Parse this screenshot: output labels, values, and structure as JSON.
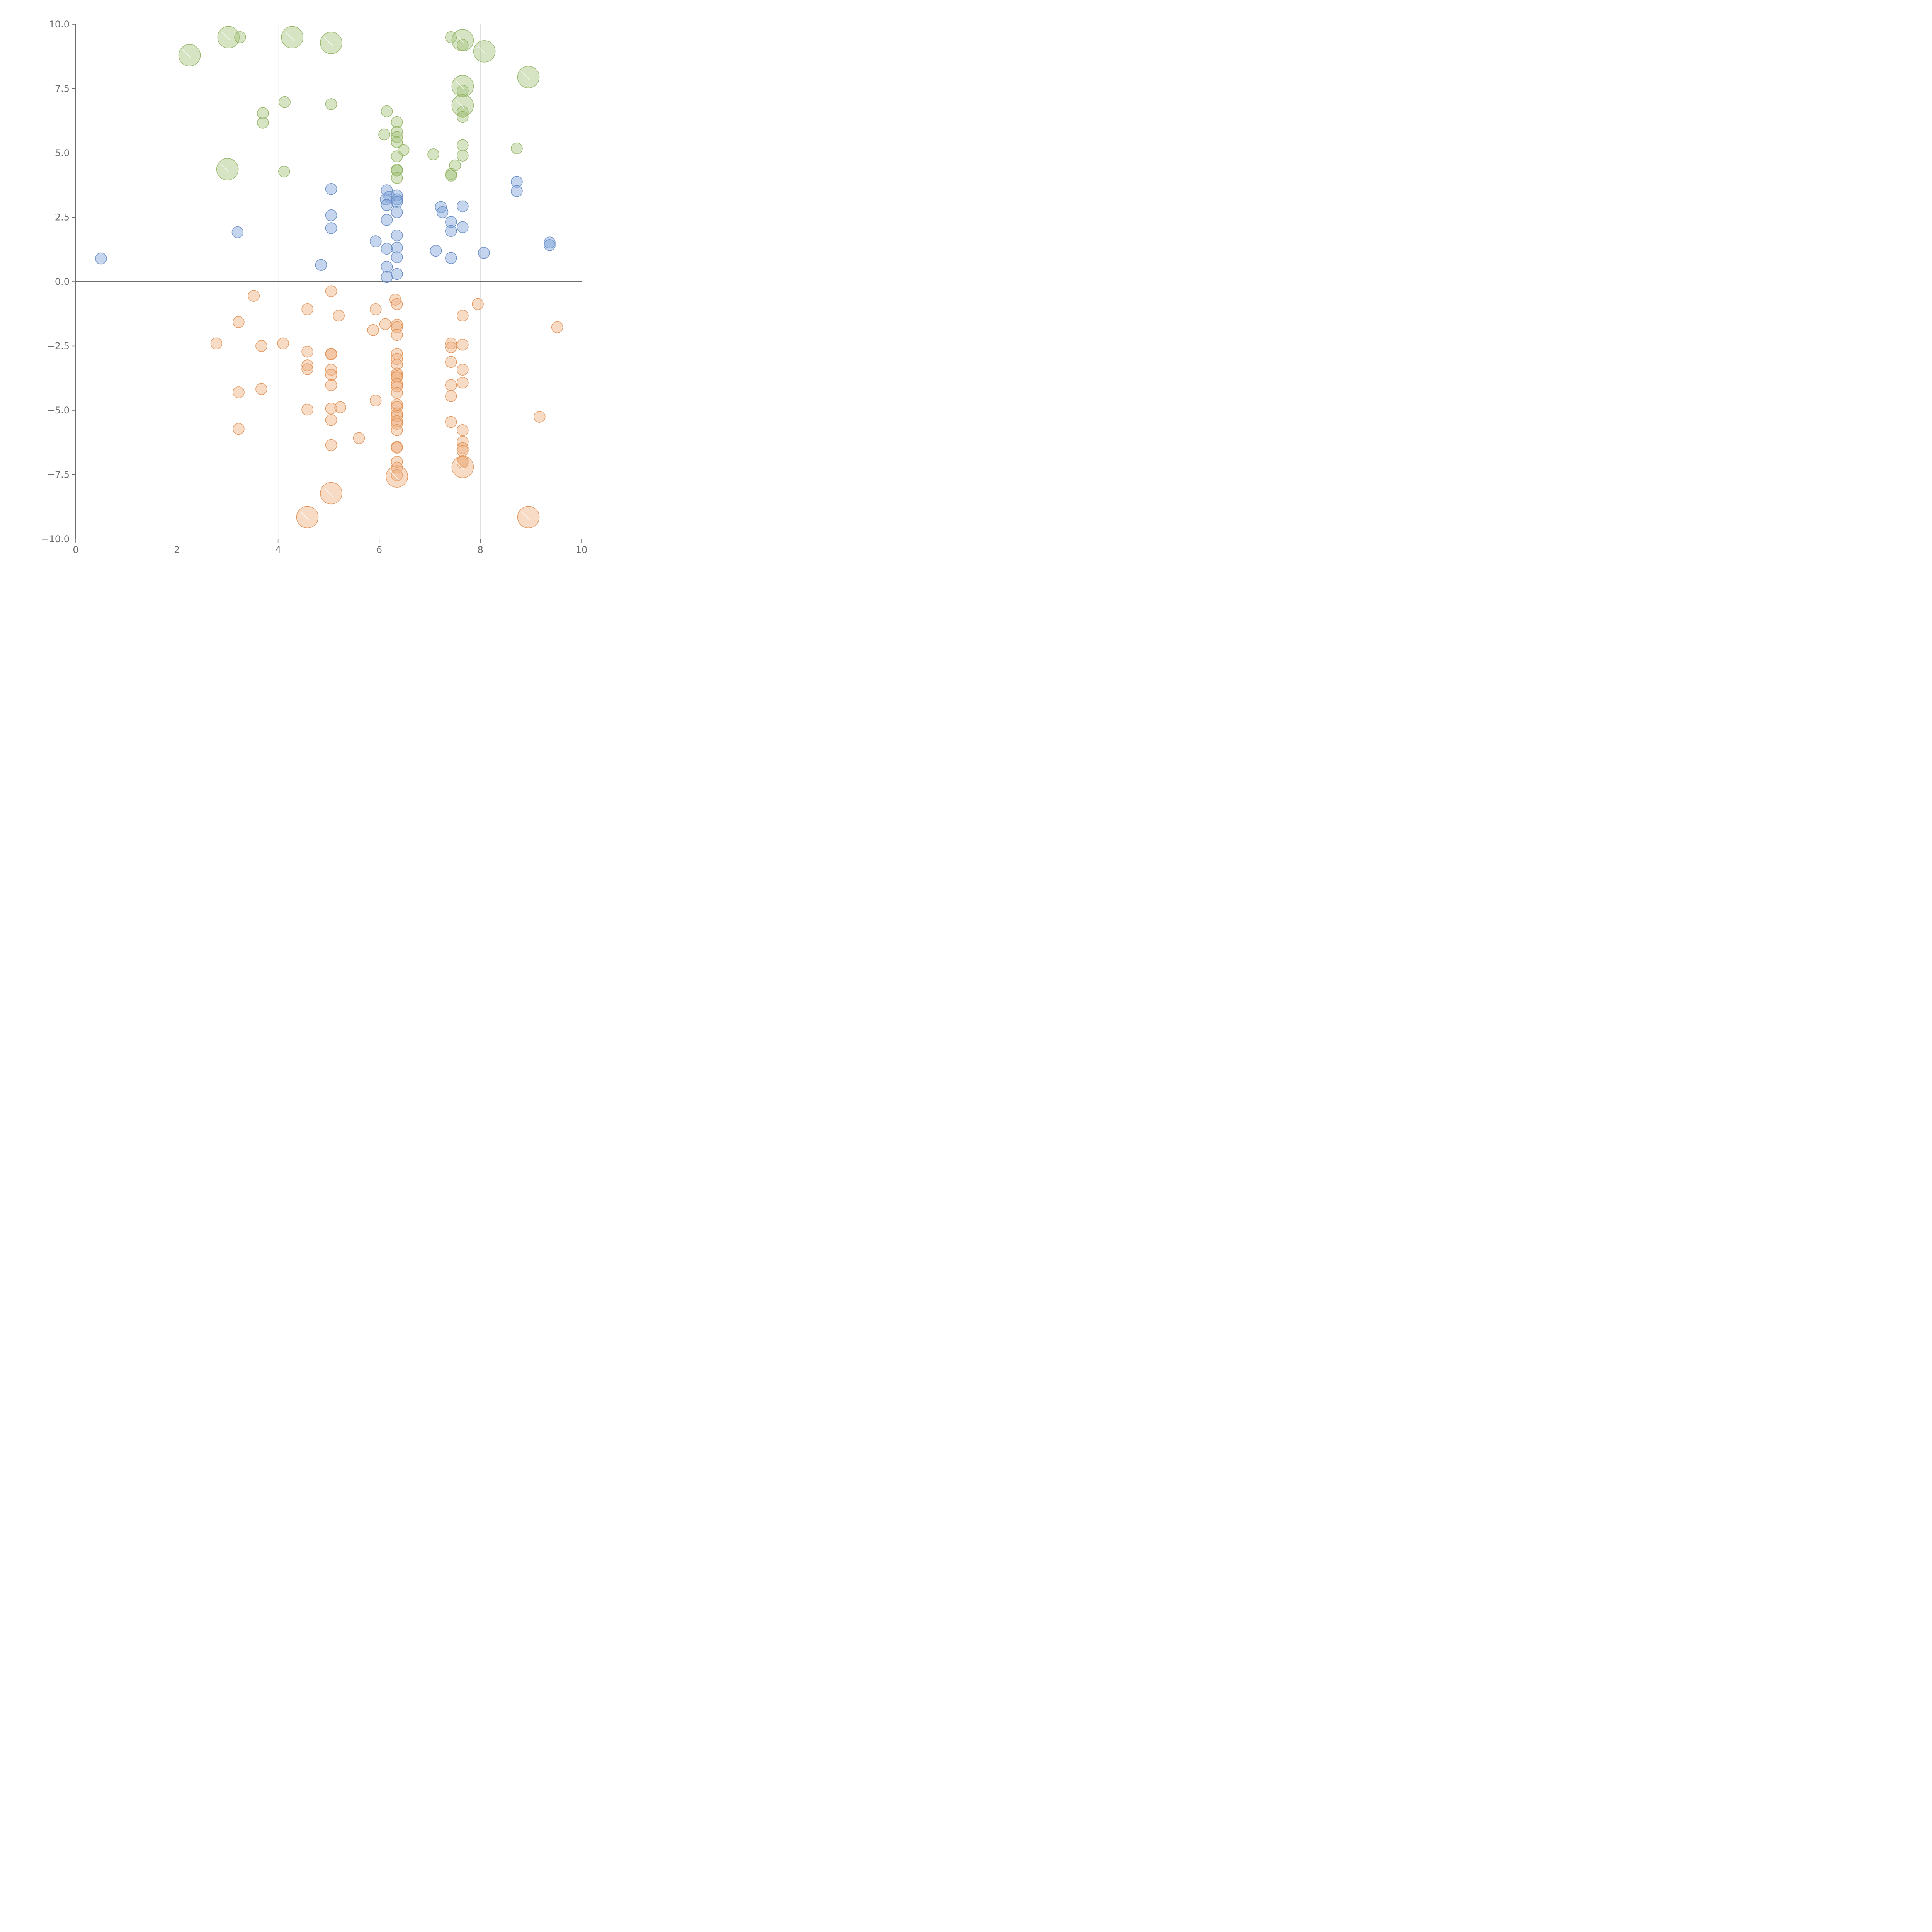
{
  "chart_data": {
    "type": "scatter",
    "title": "",
    "xlabel": "",
    "ylabel": "",
    "xlim": [
      0,
      10
    ],
    "ylim": [
      -10,
      10
    ],
    "x_ticks": [
      0,
      2,
      4,
      6,
      8,
      10
    ],
    "y_ticks": [
      -10,
      -7.5,
      -5,
      -2.5,
      0,
      2.5,
      5,
      7.5,
      10
    ],
    "x_tick_labels": [
      "0",
      "2",
      "4",
      "6",
      "8",
      "10"
    ],
    "y_tick_labels": [
      "−10.0",
      "−7.5",
      "−5.0",
      "−2.5",
      "0.0",
      "2.5",
      "5.0",
      "7.5",
      "10.0"
    ],
    "grid": {
      "vertical": true,
      "horizontal": false
    },
    "zero_line": true,
    "series": [
      {
        "color": "#a5c37c",
        "stroke": "#8fb05f",
        "points": [
          [
            2.25,
            8.8,
            2
          ],
          [
            3.02,
            9.5,
            2
          ],
          [
            3.25,
            9.5,
            1
          ],
          [
            4.28,
            9.5,
            2
          ],
          [
            5.05,
            9.28,
            2
          ],
          [
            7.42,
            9.5,
            1
          ],
          [
            7.65,
            9.38,
            2
          ],
          [
            7.65,
            9.2,
            1
          ],
          [
            8.08,
            8.95,
            2
          ],
          [
            8.95,
            7.95,
            2
          ],
          [
            7.65,
            7.6,
            2
          ],
          [
            7.65,
            7.42,
            1
          ],
          [
            7.65,
            6.85,
            2
          ],
          [
            7.65,
            6.6,
            1
          ],
          [
            7.65,
            6.4,
            1
          ],
          [
            3.7,
            6.55,
            1
          ],
          [
            3.7,
            6.18,
            1
          ],
          [
            4.13,
            6.98,
            1
          ],
          [
            5.05,
            6.9,
            1
          ],
          [
            6.15,
            6.62,
            1
          ],
          [
            6.35,
            6.2,
            1
          ],
          [
            6.35,
            5.82,
            1
          ],
          [
            6.35,
            5.62,
            1
          ],
          [
            6.35,
            5.42,
            1
          ],
          [
            6.1,
            5.72,
            1
          ],
          [
            6.48,
            5.12,
            1
          ],
          [
            6.35,
            4.87,
            1
          ],
          [
            6.35,
            4.35,
            1
          ],
          [
            6.35,
            4.32,
            1
          ],
          [
            6.35,
            4.03,
            1
          ],
          [
            7.07,
            4.95,
            1
          ],
          [
            7.65,
            5.3,
            1
          ],
          [
            7.65,
            4.9,
            1
          ],
          [
            7.5,
            4.52,
            1
          ],
          [
            7.42,
            4.18,
            1
          ],
          [
            7.42,
            4.12,
            1
          ],
          [
            8.72,
            5.18,
            1
          ],
          [
            3.0,
            4.37,
            2
          ],
          [
            4.12,
            4.28,
            1
          ]
        ]
      },
      {
        "color": "#7ea2d6",
        "stroke": "#5f86c0",
        "points": [
          [
            0.5,
            0.9,
            1
          ],
          [
            3.2,
            1.92,
            1
          ],
          [
            4.85,
            0.65,
            1
          ],
          [
            5.05,
            3.6,
            1
          ],
          [
            5.05,
            2.58,
            1
          ],
          [
            5.05,
            2.08,
            1
          ],
          [
            5.93,
            1.57,
            1
          ],
          [
            6.15,
            3.55,
            1
          ],
          [
            6.13,
            3.2,
            1
          ],
          [
            6.2,
            3.3,
            1
          ],
          [
            6.15,
            2.98,
            1
          ],
          [
            6.35,
            3.35,
            1
          ],
          [
            6.35,
            3.2,
            1
          ],
          [
            6.35,
            3.1,
            1
          ],
          [
            6.35,
            2.7,
            1
          ],
          [
            6.15,
            2.4,
            1
          ],
          [
            6.35,
            1.8,
            1
          ],
          [
            6.15,
            1.28,
            1
          ],
          [
            6.35,
            1.32,
            1
          ],
          [
            6.35,
            0.95,
            1
          ],
          [
            6.15,
            0.58,
            1
          ],
          [
            6.15,
            0.18,
            1
          ],
          [
            6.35,
            0.3,
            1
          ],
          [
            7.12,
            1.2,
            1
          ],
          [
            7.22,
            2.9,
            1
          ],
          [
            7.25,
            2.7,
            1
          ],
          [
            7.42,
            2.32,
            1
          ],
          [
            7.42,
            1.97,
            1
          ],
          [
            7.42,
            0.92,
            1
          ],
          [
            7.65,
            2.93,
            1
          ],
          [
            7.65,
            2.12,
            1
          ],
          [
            8.07,
            1.12,
            1
          ],
          [
            8.72,
            3.88,
            1
          ],
          [
            8.72,
            3.52,
            1
          ],
          [
            9.37,
            1.52,
            1
          ],
          [
            9.37,
            1.42,
            1
          ]
        ]
      },
      {
        "color": "#eeb07e",
        "stroke": "#df8e52",
        "points": [
          [
            2.78,
            -2.4,
            1
          ],
          [
            3.22,
            -1.57,
            1
          ],
          [
            3.52,
            -0.55,
            1
          ],
          [
            3.67,
            -2.5,
            1
          ],
          [
            4.1,
            -2.4,
            1
          ],
          [
            3.22,
            -4.3,
            1
          ],
          [
            3.67,
            -4.17,
            1
          ],
          [
            3.22,
            -5.72,
            1
          ],
          [
            4.58,
            -1.07,
            1
          ],
          [
            4.58,
            -2.72,
            1
          ],
          [
            4.58,
            -3.25,
            1
          ],
          [
            4.58,
            -3.4,
            1
          ],
          [
            4.58,
            -4.97,
            1
          ],
          [
            5.05,
            -0.37,
            1
          ],
          [
            5.2,
            -1.32,
            1
          ],
          [
            5.05,
            -2.8,
            1
          ],
          [
            5.05,
            -2.82,
            1
          ],
          [
            5.05,
            -3.42,
            1
          ],
          [
            5.05,
            -3.62,
            1
          ],
          [
            5.05,
            -4.02,
            1
          ],
          [
            5.05,
            -4.93,
            1
          ],
          [
            5.23,
            -4.88,
            1
          ],
          [
            5.05,
            -5.38,
            1
          ],
          [
            5.05,
            -6.35,
            1
          ],
          [
            5.6,
            -6.08,
            1
          ],
          [
            5.93,
            -1.07,
            1
          ],
          [
            5.88,
            -1.88,
            1
          ],
          [
            6.12,
            -1.65,
            1
          ],
          [
            5.93,
            -4.62,
            1
          ],
          [
            6.32,
            -0.7,
            1
          ],
          [
            6.35,
            -0.87,
            1
          ],
          [
            6.35,
            -1.67,
            1
          ],
          [
            6.35,
            -1.77,
            1
          ],
          [
            6.35,
            -2.07,
            1
          ],
          [
            6.35,
            -2.8,
            1
          ],
          [
            6.35,
            -3.0,
            1
          ],
          [
            6.35,
            -3.22,
            1
          ],
          [
            6.35,
            -3.57,
            1
          ],
          [
            6.35,
            -3.67,
            1
          ],
          [
            6.35,
            -3.72,
            1
          ],
          [
            6.35,
            -3.97,
            1
          ],
          [
            6.35,
            -4.07,
            1
          ],
          [
            6.35,
            -4.32,
            1
          ],
          [
            6.35,
            -4.77,
            1
          ],
          [
            6.35,
            -4.87,
            1
          ],
          [
            6.35,
            -5.12,
            1
          ],
          [
            6.35,
            -5.22,
            1
          ],
          [
            6.35,
            -5.42,
            1
          ],
          [
            6.35,
            -5.52,
            1
          ],
          [
            6.35,
            -5.77,
            1
          ],
          [
            6.35,
            -6.42,
            1
          ],
          [
            6.35,
            -6.45,
            1
          ],
          [
            6.35,
            -7.0,
            1
          ],
          [
            6.35,
            -7.22,
            1
          ],
          [
            6.35,
            -7.52,
            1
          ],
          [
            6.35,
            -7.57,
            2
          ],
          [
            7.42,
            -2.4,
            1
          ],
          [
            7.42,
            -2.55,
            1
          ],
          [
            7.42,
            -3.12,
            1
          ],
          [
            7.42,
            -4.02,
            1
          ],
          [
            7.42,
            -4.45,
            1
          ],
          [
            7.42,
            -5.45,
            1
          ],
          [
            7.65,
            -1.32,
            1
          ],
          [
            7.65,
            -2.45,
            1
          ],
          [
            7.65,
            -3.42,
            1
          ],
          [
            7.65,
            -3.92,
            1
          ],
          [
            7.65,
            -5.77,
            1
          ],
          [
            7.65,
            -6.22,
            1
          ],
          [
            7.65,
            -6.47,
            1
          ],
          [
            7.65,
            -6.57,
            1
          ],
          [
            7.65,
            -6.97,
            1
          ],
          [
            7.65,
            -7.02,
            1
          ],
          [
            7.65,
            -7.2,
            2
          ],
          [
            7.95,
            -0.87,
            1
          ],
          [
            9.17,
            -5.25,
            1
          ],
          [
            9.52,
            -1.77,
            1
          ],
          [
            5.05,
            -8.22,
            2
          ],
          [
            4.58,
            -9.15,
            2
          ],
          [
            8.95,
            -9.15,
            2
          ]
        ]
      }
    ]
  }
}
